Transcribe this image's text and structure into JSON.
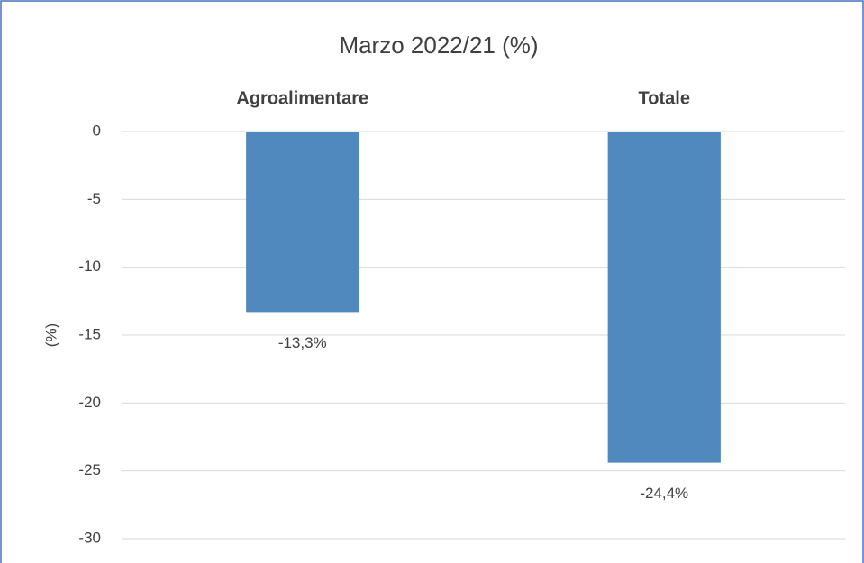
{
  "chart_data": {
    "type": "bar",
    "title": "Marzo 2022/21 (%)",
    "y_label": "(%)",
    "categories": [
      "Agroalimentare",
      "Totale"
    ],
    "values": [
      -13.3,
      -24.4
    ],
    "value_labels": [
      "-13,3%",
      "-24,4%"
    ],
    "color": "#4f89bd",
    "ylim": [
      -30,
      0
    ],
    "yticks": [
      0,
      -5,
      -10,
      -15,
      -20,
      -25,
      -30
    ],
    "grid": true
  }
}
